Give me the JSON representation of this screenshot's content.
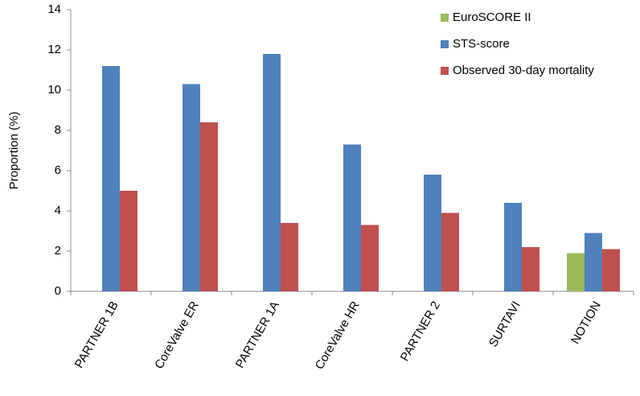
{
  "chart_data": {
    "type": "bar",
    "y_label": "Proportion (%)",
    "categories": [
      "PARTNER 1B",
      "CoreValve ER",
      "PARTNER 1A",
      "CoreValve HR",
      "PARTNER 2",
      "SURTAVI",
      "NOTION"
    ],
    "series": [
      {
        "name": "EuroSCORE II",
        "color": "#9bbb59",
        "values": [
          null,
          null,
          null,
          null,
          null,
          null,
          1.9
        ]
      },
      {
        "name": "STS-score",
        "color": "#4f81bd",
        "values": [
          11.2,
          10.3,
          11.8,
          7.3,
          5.8,
          4.4,
          2.9
        ]
      },
      {
        "name": "Observed 30-day mortality",
        "color": "#c0504d",
        "values": [
          5.0,
          8.4,
          3.4,
          3.3,
          3.9,
          2.2,
          2.1
        ]
      }
    ],
    "ylim": [
      0,
      14
    ],
    "yticks": [
      0,
      2,
      4,
      6,
      8,
      10,
      12,
      14
    ],
    "legend": "upper right"
  }
}
